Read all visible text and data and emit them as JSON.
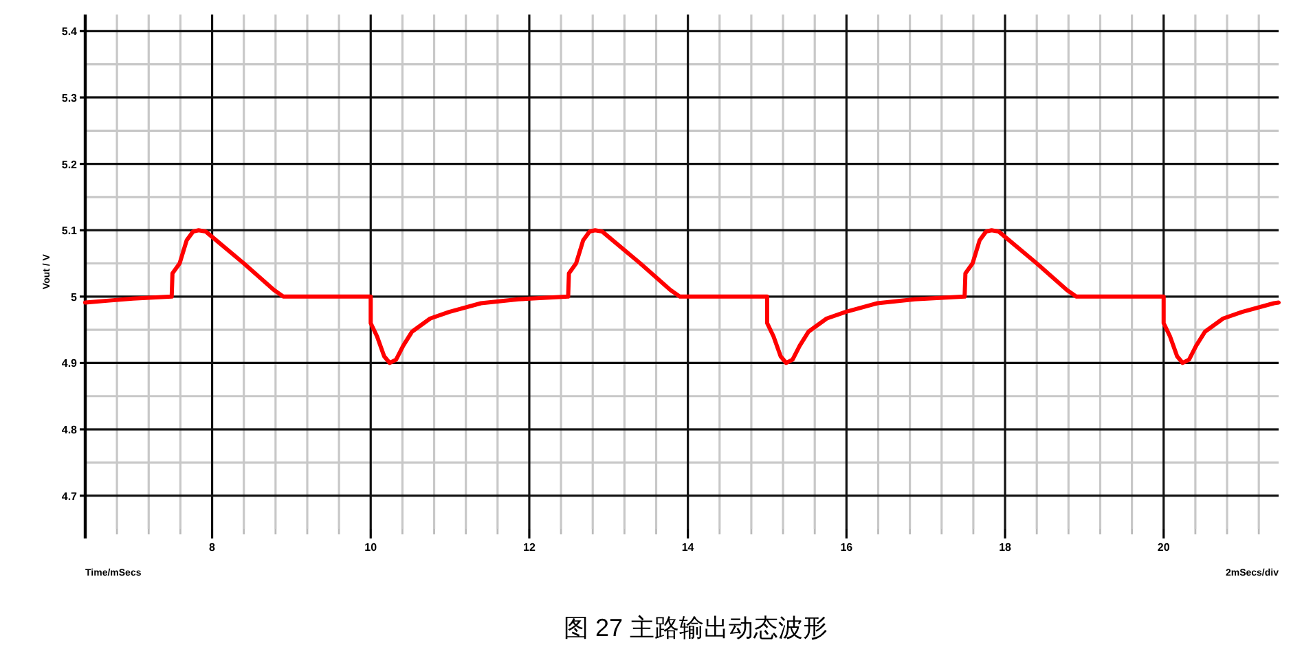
{
  "chart_data": {
    "type": "line",
    "ylabel": "Vout / V",
    "annotations": [
      "Time/mSecs",
      "2mSecs/div",
      "图 27 主路输出动态波形"
    ],
    "xlim": [
      6.4,
      21.45
    ],
    "xticks": [
      8,
      10,
      12,
      14,
      16,
      18,
      20
    ],
    "ylim": [
      4.65,
      5.425
    ],
    "yticks": [
      5.4,
      5.3,
      5.2,
      5.1,
      5,
      4.9,
      4.8,
      4.7
    ],
    "grid": true,
    "x": [
      6.4,
      6.7,
      7.0,
      7.49,
      7.5,
      7.59,
      7.68,
      7.76,
      7.83,
      7.92,
      8.0,
      8.4,
      8.78,
      8.9,
      10.0,
      10.0,
      10.08,
      10.17,
      10.24,
      10.32,
      10.41,
      10.52,
      10.75,
      10.99,
      11.39,
      11.86,
      12.49,
      12.5,
      12.59,
      12.68,
      12.76,
      12.83,
      12.92,
      13.0,
      13.4,
      13.78,
      13.9,
      15.0,
      15.0,
      15.08,
      15.17,
      15.24,
      15.32,
      15.41,
      15.52,
      15.75,
      15.99,
      16.39,
      16.86,
      17.49,
      17.5,
      17.59,
      17.68,
      17.76,
      17.83,
      17.92,
      18.0,
      18.4,
      18.78,
      18.9,
      20.0,
      20.0,
      20.08,
      20.17,
      20.24,
      20.32,
      20.41,
      20.52,
      20.75,
      20.99,
      21.39,
      21.45
    ],
    "series": [
      {
        "color": "#ff0000",
        "values": [
          4.991,
          4.994,
          4.997,
          5.0,
          5.035,
          5.05,
          5.085,
          5.098,
          5.1,
          5.098,
          5.09,
          5.05,
          5.01,
          5.0,
          5.0,
          4.96,
          4.94,
          4.91,
          4.9,
          4.905,
          4.926,
          4.947,
          4.967,
          4.977,
          4.99,
          4.996,
          5.0,
          5.035,
          5.05,
          5.085,
          5.098,
          5.1,
          5.098,
          5.09,
          5.05,
          5.01,
          5.0,
          5.0,
          4.96,
          4.94,
          4.91,
          4.9,
          4.905,
          4.926,
          4.947,
          4.967,
          4.977,
          4.99,
          4.996,
          5.0,
          5.035,
          5.05,
          5.085,
          5.098,
          5.1,
          5.098,
          5.09,
          5.05,
          5.01,
          5.0,
          5.0,
          4.96,
          4.94,
          4.91,
          4.9,
          4.905,
          4.926,
          4.947,
          4.967,
          4.977,
          4.99,
          4.991
        ]
      }
    ]
  }
}
